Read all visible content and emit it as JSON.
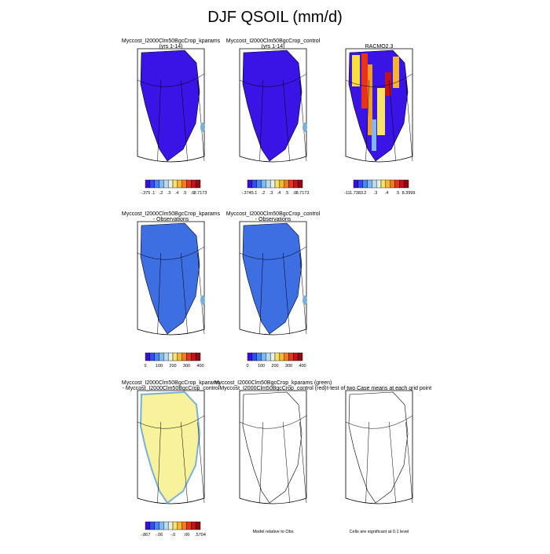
{
  "title": "DJF QSOIL (mm/d)",
  "panels": [
    {
      "title": [
        "Myccost_I2000Clm50BgcCrop_kparams",
        "(yrs 1-14)"
      ],
      "colorbar_labels": [
        "-.375",
        ".1",
        ".2",
        ".3",
        ".4",
        ".5",
        ".6",
        "8.7173"
      ]
    },
    {
      "title": [
        "Myccost_I2000Clm50BgcCrop_control",
        "(yrs 1-14)"
      ],
      "colorbar_labels": [
        "-.3745",
        ".1",
        ".2",
        ".3",
        ".4",
        ".5",
        ".6",
        "8.7173"
      ]
    },
    {
      "title": [
        "RACMO2.3"
      ],
      "colorbar_labels": [
        "-111.7383",
        ".2",
        ".3",
        ".4",
        ".5",
        "8.3999"
      ]
    },
    {
      "title": [
        "Myccost_I2000Clm50BgcCrop_kparams",
        "- Observations"
      ],
      "colorbar_labels": [
        "0",
        "100",
        "200",
        "300",
        "400"
      ]
    },
    {
      "title": [
        "Myccost_I2000Clm50BgcCrop_control",
        "- Observations"
      ],
      "colorbar_labels": [
        "0",
        "100",
        "200",
        "300",
        "400"
      ]
    },
    {
      "title": [
        "Myccost_I2000Clm50BgcCrop_kparams",
        "- Myccost_I2000Clm50BgcCrop_control"
      ],
      "colorbar_labels": [
        "-.867",
        "-.06",
        "-.0",
        ".06",
        ".5704"
      ]
    },
    {
      "title": [
        "Myccost_I2000Clm50BgcCrop_kparams (green)",
        "Myccost_I2000Clm50BgcCrop_control (red)"
      ],
      "note": "Model relative to Obs"
    },
    {
      "title": [
        "t-test of two Case means at each grid point"
      ],
      "note": "Cells are significant at 0.1 level"
    }
  ]
}
